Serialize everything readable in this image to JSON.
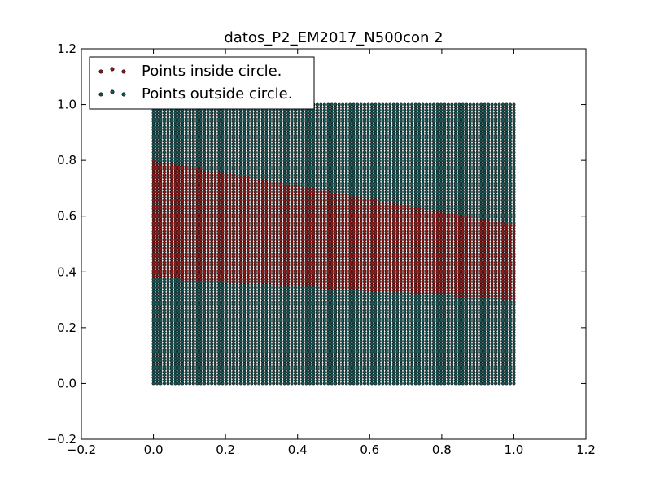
{
  "chart_data": {
    "type": "scatter",
    "title": "datos_P2_EM2017_N500con  2",
    "xlabel": "",
    "ylabel": "",
    "xlim": [
      -0.2,
      1.2
    ],
    "ylim": [
      -0.2,
      1.2
    ],
    "x_ticks": [
      "−0.2",
      "0.0",
      "0.2",
      "0.4",
      "0.6",
      "0.8",
      "1.0",
      "1.2"
    ],
    "y_ticks": [
      "−0.2",
      "0.0",
      "0.2",
      "0.4",
      "0.6",
      "0.8",
      "1.0",
      "1.2"
    ],
    "grid": false,
    "legend_position": "top-left",
    "grid_points": {
      "x_range": [
        0,
        1
      ],
      "y_range": [
        0,
        1
      ],
      "points_per_axis": 100
    },
    "boundary": {
      "lower": [
        [
          0.0,
          0.38
        ],
        [
          1.0,
          0.3
        ]
      ],
      "upper": [
        [
          0.0,
          0.8
        ],
        [
          1.0,
          0.57
        ]
      ]
    },
    "series": [
      {
        "name": "Points inside circle.",
        "color": "#8b1a1a",
        "region": "between lower and upper boundary"
      },
      {
        "name": "Points outside circle.",
        "color": "#1a5555",
        "region": "below lower or above upper boundary"
      }
    ]
  }
}
